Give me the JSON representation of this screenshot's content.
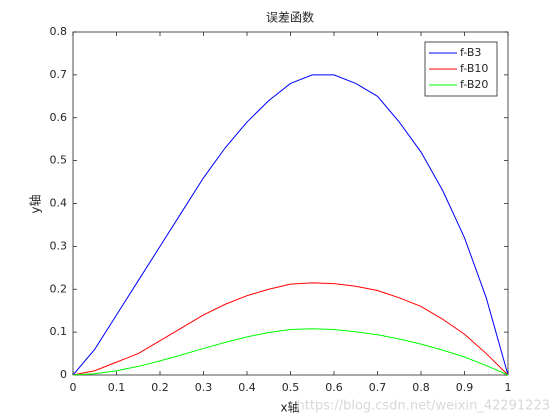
{
  "chart_data": {
    "type": "line",
    "title": "误差函数",
    "x_label": "x轴",
    "y_label": "y轴",
    "x": [
      0,
      0.05,
      0.1,
      0.15,
      0.2,
      0.25,
      0.3,
      0.35,
      0.4,
      0.45,
      0.5,
      0.55,
      0.6,
      0.65,
      0.7,
      0.75,
      0.8,
      0.85,
      0.9,
      0.95,
      1
    ],
    "series": [
      {
        "name": "f-B3",
        "color": "#0000ff",
        "values": [
          0,
          0.06,
          0.14,
          0.22,
          0.3,
          0.38,
          0.46,
          0.53,
          0.59,
          0.64,
          0.68,
          0.7,
          0.7,
          0.68,
          0.65,
          0.59,
          0.52,
          0.43,
          0.32,
          0.18,
          0
        ]
      },
      {
        "name": "f-B10",
        "color": "#ff0000",
        "values": [
          0,
          0.01,
          0.03,
          0.05,
          0.08,
          0.11,
          0.14,
          0.165,
          0.185,
          0.2,
          0.212,
          0.215,
          0.213,
          0.207,
          0.197,
          0.18,
          0.16,
          0.13,
          0.095,
          0.05,
          0
        ]
      },
      {
        "name": "f-B20",
        "color": "#00ff00",
        "values": [
          0,
          0.003,
          0.01,
          0.02,
          0.033,
          0.047,
          0.062,
          0.076,
          0.089,
          0.099,
          0.106,
          0.108,
          0.106,
          0.101,
          0.094,
          0.084,
          0.072,
          0.058,
          0.042,
          0.022,
          0
        ]
      }
    ],
    "xlim": [
      0,
      1
    ],
    "xticks": [
      0,
      0.1,
      0.2,
      0.3,
      0.4,
      0.5,
      0.6,
      0.7,
      0.8,
      0.9,
      1
    ],
    "ylim": [
      0,
      0.8
    ],
    "yticks": [
      0,
      0.1,
      0.2,
      0.3,
      0.4,
      0.5,
      0.6,
      0.7,
      0.8
    ],
    "legend": "northeast",
    "watermark": "https://blog.csdn.net/weixin_42291223"
  }
}
